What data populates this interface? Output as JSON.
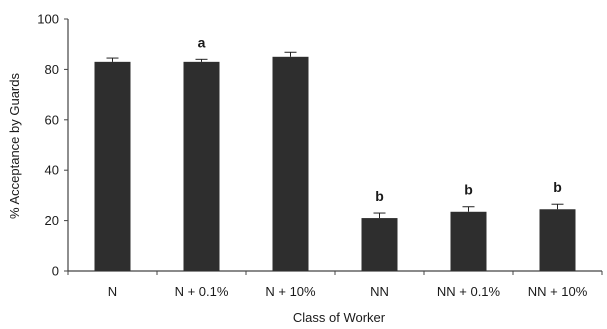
{
  "chart_data": {
    "type": "bar",
    "xlabel": "Class of Worker",
    "ylabel": "% Acceptance by Guards",
    "ylim": [
      0,
      100
    ],
    "yticks": [
      0,
      20,
      40,
      60,
      80,
      100
    ],
    "grid": false,
    "categories": [
      "N",
      "N + 0.1%",
      "N + 10%",
      "NN",
      "NN + 0.1%",
      "NN + 10%"
    ],
    "values": [
      83,
      83,
      85,
      21,
      23.5,
      24.5
    ],
    "errors": [
      1.5,
      1,
      1.8,
      2,
      2,
      2
    ],
    "significance_labels": [
      "",
      "a",
      "",
      "b",
      "b",
      "b"
    ],
    "bar_color": "#2e2e2e"
  }
}
